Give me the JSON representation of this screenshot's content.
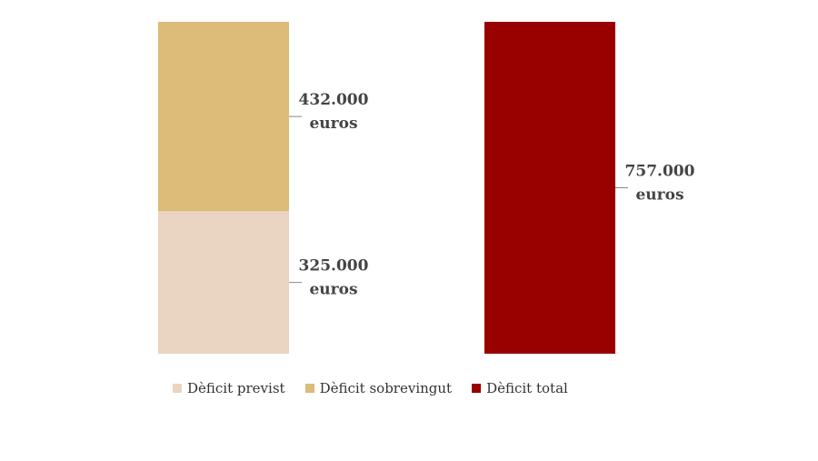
{
  "chart_data": {
    "type": "bar",
    "stacked": true,
    "ylim": [
      0,
      757000
    ],
    "bars": [
      {
        "segments": [
          {
            "series": "Dèficit previst",
            "value": 325000,
            "label_lines": [
              "325.000",
              "euros"
            ]
          },
          {
            "series": "Dèficit sobrevingut",
            "value": 432000,
            "label_lines": [
              "432.000",
              "euros"
            ]
          }
        ]
      },
      {
        "segments": [
          {
            "series": "Dèficit total",
            "value": 757000,
            "label_lines": [
              "757.000",
              "euros"
            ]
          }
        ]
      }
    ],
    "series": [
      {
        "name": "Dèficit previst",
        "color": "#ead4c2"
      },
      {
        "name": "Dèficit sobrevingut",
        "color": "#ddbb78"
      },
      {
        "name": "Dèficit total",
        "color": "#990000"
      }
    ],
    "legend_position": "bottom",
    "grid": false
  }
}
